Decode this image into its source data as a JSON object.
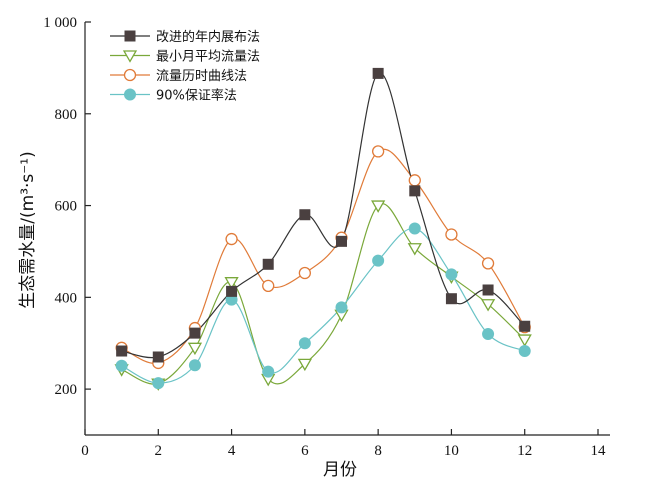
{
  "chart_data": {
    "type": "line",
    "xlabel": "月份",
    "ylabel": "生态需水量/(m³·s⁻¹)",
    "xlim": [
      0,
      14
    ],
    "ylim": [
      100,
      1000
    ],
    "x_ticks": [
      0,
      2,
      4,
      6,
      8,
      10,
      12,
      14
    ],
    "x_tick_labels": [
      "0",
      "2",
      "4",
      "6",
      "8",
      "10",
      "12",
      "14"
    ],
    "y_ticks": [
      200,
      400,
      600,
      800,
      1000
    ],
    "y_tick_labels": [
      "200",
      "400",
      "600",
      "800",
      "1 000"
    ],
    "x": [
      1,
      2,
      3,
      4,
      5,
      6,
      7,
      8,
      9,
      10,
      11,
      12
    ],
    "legend_position": "top-left",
    "series": [
      {
        "name": "改进的年内展布法",
        "marker": "filled-square",
        "color": "#333333",
        "marker_color": "#4a4040",
        "values": [
          283,
          270,
          322,
          413,
          472,
          580,
          522,
          888,
          632,
          397,
          416,
          337
        ]
      },
      {
        "name": "最小月平均流量法",
        "marker": "open-triangle-down",
        "color": "#7aa83a",
        "values": [
          243,
          212,
          290,
          433,
          222,
          255,
          362,
          600,
          507,
          445,
          385,
          308
        ]
      },
      {
        "name": "流量历时曲线法",
        "marker": "open-circle",
        "color": "#e07b39",
        "values": [
          290,
          257,
          333,
          527,
          425,
          453,
          530,
          718,
          655,
          537,
          474,
          335
        ]
      },
      {
        "name": "90%保证率法",
        "marker": "filled-circle",
        "color": "#6ac3c6",
        "values": [
          251,
          213,
          252,
          395,
          238,
          300,
          378,
          480,
          550,
          450,
          320,
          283
        ]
      }
    ]
  }
}
